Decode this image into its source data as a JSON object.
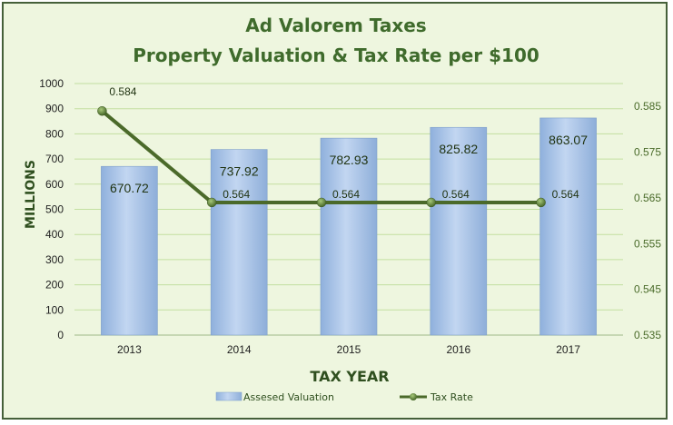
{
  "chart_data": {
    "type": "bar",
    "title": "Ad Valorem Taxes",
    "subtitle": "Property Valuation & Tax Rate per $100",
    "xlabel": "TAX YEAR",
    "ylabel": "MILLIONS",
    "categories": [
      "2013",
      "2014",
      "2015",
      "2016",
      "2017"
    ],
    "ylim": [
      0,
      1000
    ],
    "yticks": [
      "0",
      "100",
      "200",
      "300",
      "400",
      "500",
      "600",
      "700",
      "800",
      "900",
      "1000"
    ],
    "y2lim": [
      0.535,
      0.59
    ],
    "y2ticks": [
      "0.535",
      "0.545",
      "0.555",
      "0.565",
      "0.575",
      "0.585"
    ],
    "grid": true,
    "legend_position": "bottom",
    "series": [
      {
        "name": "Assesed Valuation",
        "type": "bar",
        "axis": "left",
        "values": [
          670.72,
          737.92,
          782.93,
          825.82,
          863.07
        ],
        "labels": [
          "670.72",
          "737.92",
          "782.93",
          "825.82",
          "863.07"
        ],
        "color": "#a9c4e8"
      },
      {
        "name": "Tax Rate",
        "type": "line",
        "axis": "right",
        "values": [
          0.584,
          0.564,
          0.564,
          0.564,
          0.564
        ],
        "labels": [
          "0.584",
          "0.564",
          "0.564",
          "0.564",
          "0.564"
        ],
        "color": "#4b6a2a"
      }
    ]
  }
}
